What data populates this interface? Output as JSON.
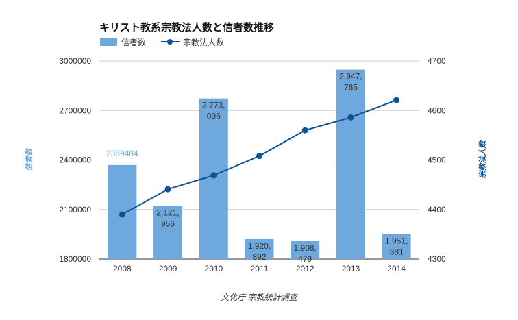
{
  "chart_data": {
    "type": "bar+line",
    "title": "キリスト教系宗教法人数と信者数推移",
    "categories": [
      "2008",
      "2009",
      "2010",
      "2011",
      "2012",
      "2013",
      "2014"
    ],
    "series": [
      {
        "name": "信者数",
        "type": "bar",
        "axis": "left",
        "color": "#6fa8dc",
        "values": [
          2369484,
          2121956,
          2773096,
          1920892,
          1908479,
          2947765,
          1951381
        ],
        "data_labels": [
          [
            "2369484"
          ],
          [
            "2,121,",
            "956"
          ],
          [
            "2,773,",
            "096"
          ],
          [
            "1,920,",
            "892"
          ],
          [
            "1,908,",
            "479"
          ],
          [
            "2,947,",
            "765"
          ],
          [
            "1,951,",
            "381"
          ]
        ]
      },
      {
        "name": "宗教法人数",
        "type": "line",
        "axis": "right",
        "color": "#0b5394",
        "values": [
          4390,
          4441,
          4469,
          4508,
          4560,
          4586,
          4621
        ]
      }
    ],
    "ylabel_left": "信者数",
    "ylabel_right": "宗教法人数",
    "ylim_left": [
      1800000,
      3000000
    ],
    "yticks_left": [
      "3000000",
      "2700000",
      "2400000",
      "2100000",
      "1800000"
    ],
    "ylim_right": [
      4300,
      4700
    ],
    "yticks_right": [
      "4700",
      "4600",
      "4500",
      "4400",
      "4300"
    ],
    "xlabel": "文化庁 宗教統計調査",
    "grid": true,
    "legend": "top-left"
  }
}
